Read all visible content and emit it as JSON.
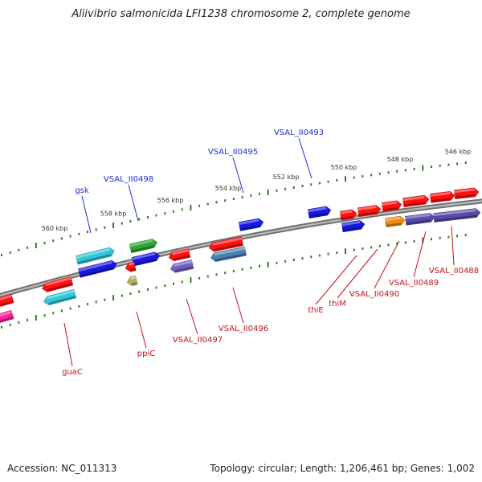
{
  "title": "Aliivibrio salmonicida LFI1238 chromosome 2, complete genome",
  "accession": "Accession: NC_011313",
  "stats": "Topology: circular; Length: 1,206,461 bp; Genes: 1,002",
  "colors": {
    "backbone": "#8c8c8c",
    "tick": "#2e7d1e",
    "label_forward": "#1f2bd6",
    "label_reverse": "#c8101a"
  },
  "ticks": {
    "outer_labels": [
      "560 kbp",
      "558 kbp",
      "556 kbp",
      "554 kbp",
      "552 kbp",
      "550 kbp",
      "548 kbp",
      "546 kbp"
    ]
  },
  "genes_forward": [
    {
      "label": "gsk",
      "color": "#30c8d8"
    },
    {
      "label": "VSAL_II0498",
      "color": "#2fa532"
    },
    {
      "label": "VSAL_II0495",
      "color": "#1818e0"
    },
    {
      "label": "VSAL_II0493",
      "color": "#1818e0"
    },
    {
      "color": "#1818e0"
    },
    {
      "color": "#1818e0"
    },
    {
      "color": "#1818e0"
    },
    {
      "color": "#ee8b10"
    },
    {
      "color": "#5a4aa8"
    },
    {
      "color": "#5a4aa8"
    },
    {
      "color": "#ff1010"
    },
    {
      "color": "#ff1010"
    },
    {
      "color": "#ff1010"
    },
    {
      "color": "#ff1010"
    },
    {
      "color": "#ff1010"
    },
    {
      "color": "#ff1010"
    }
  ],
  "genes_reverse": [
    {
      "label": "guaC",
      "color": "#ff1010"
    },
    {
      "label": "ppiC",
      "color": "#ff1010"
    },
    {
      "label": "VSAL_II0497",
      "color": "#ff1010"
    },
    {
      "label": "VSAL_II0496",
      "color": "#ff1010"
    },
    {
      "label": "thiE",
      "color": "#ff1010"
    },
    {
      "label": "thiM",
      "color": "#ff1010"
    },
    {
      "label": "VSAL_II0490",
      "color": "#ee8b10"
    },
    {
      "label": "VSAL_II0489",
      "color": "#5a4aa8"
    },
    {
      "label": "VSAL_II0488",
      "color": "#5a4aa8"
    },
    {
      "color": "#ff20a0"
    },
    {
      "color": "#30c8d8"
    },
    {
      "color": "#b8b060"
    },
    {
      "color": "#7060c0"
    },
    {
      "color": "#4a80b0"
    }
  ]
}
